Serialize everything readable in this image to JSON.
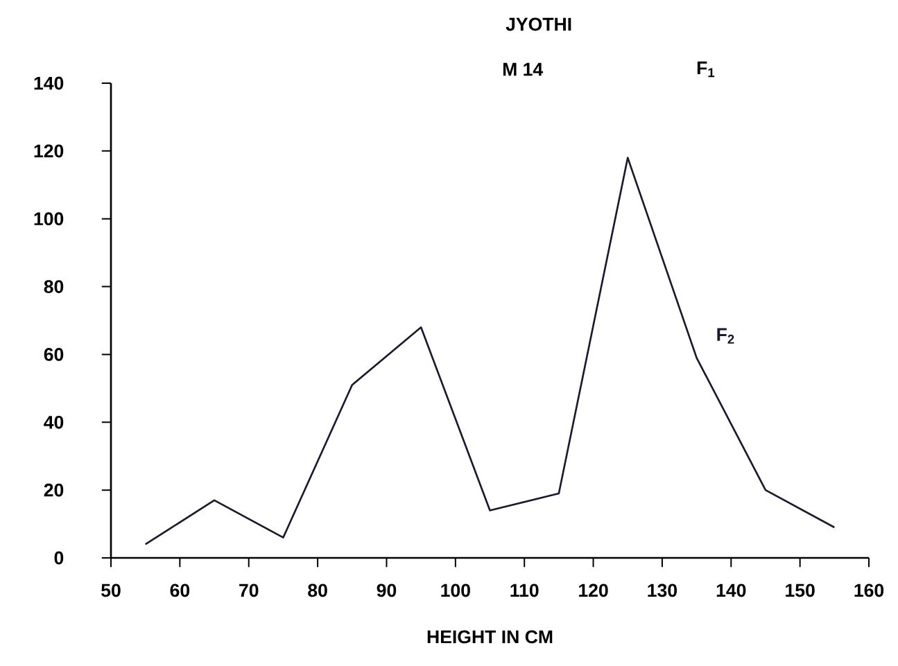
{
  "chart_data": {
    "type": "line",
    "x": [
      55,
      65,
      75,
      85,
      95,
      105,
      115,
      125,
      135,
      145,
      155
    ],
    "series": [
      {
        "name": "F$_{2}$",
        "color": "#1a1a2e",
        "values": [
          4,
          17,
          6,
          51,
          68,
          14,
          19,
          118,
          59,
          20,
          9
        ]
      }
    ],
    "xlabel": "HEIGHT IN CM",
    "xlim": [
      50,
      160
    ],
    "xticks": [
      50,
      60,
      70,
      80,
      90,
      100,
      110,
      120,
      130,
      140,
      150,
      160
    ],
    "ylim": [
      0,
      140
    ],
    "yticks": [
      0,
      20,
      40,
      60,
      80,
      100,
      120,
      140
    ],
    "annotations": [
      "JYOTHI",
      "M 14",
      "F$_{1}$"
    ],
    "grid": false,
    "marker": "none",
    "line_style": "solid"
  }
}
